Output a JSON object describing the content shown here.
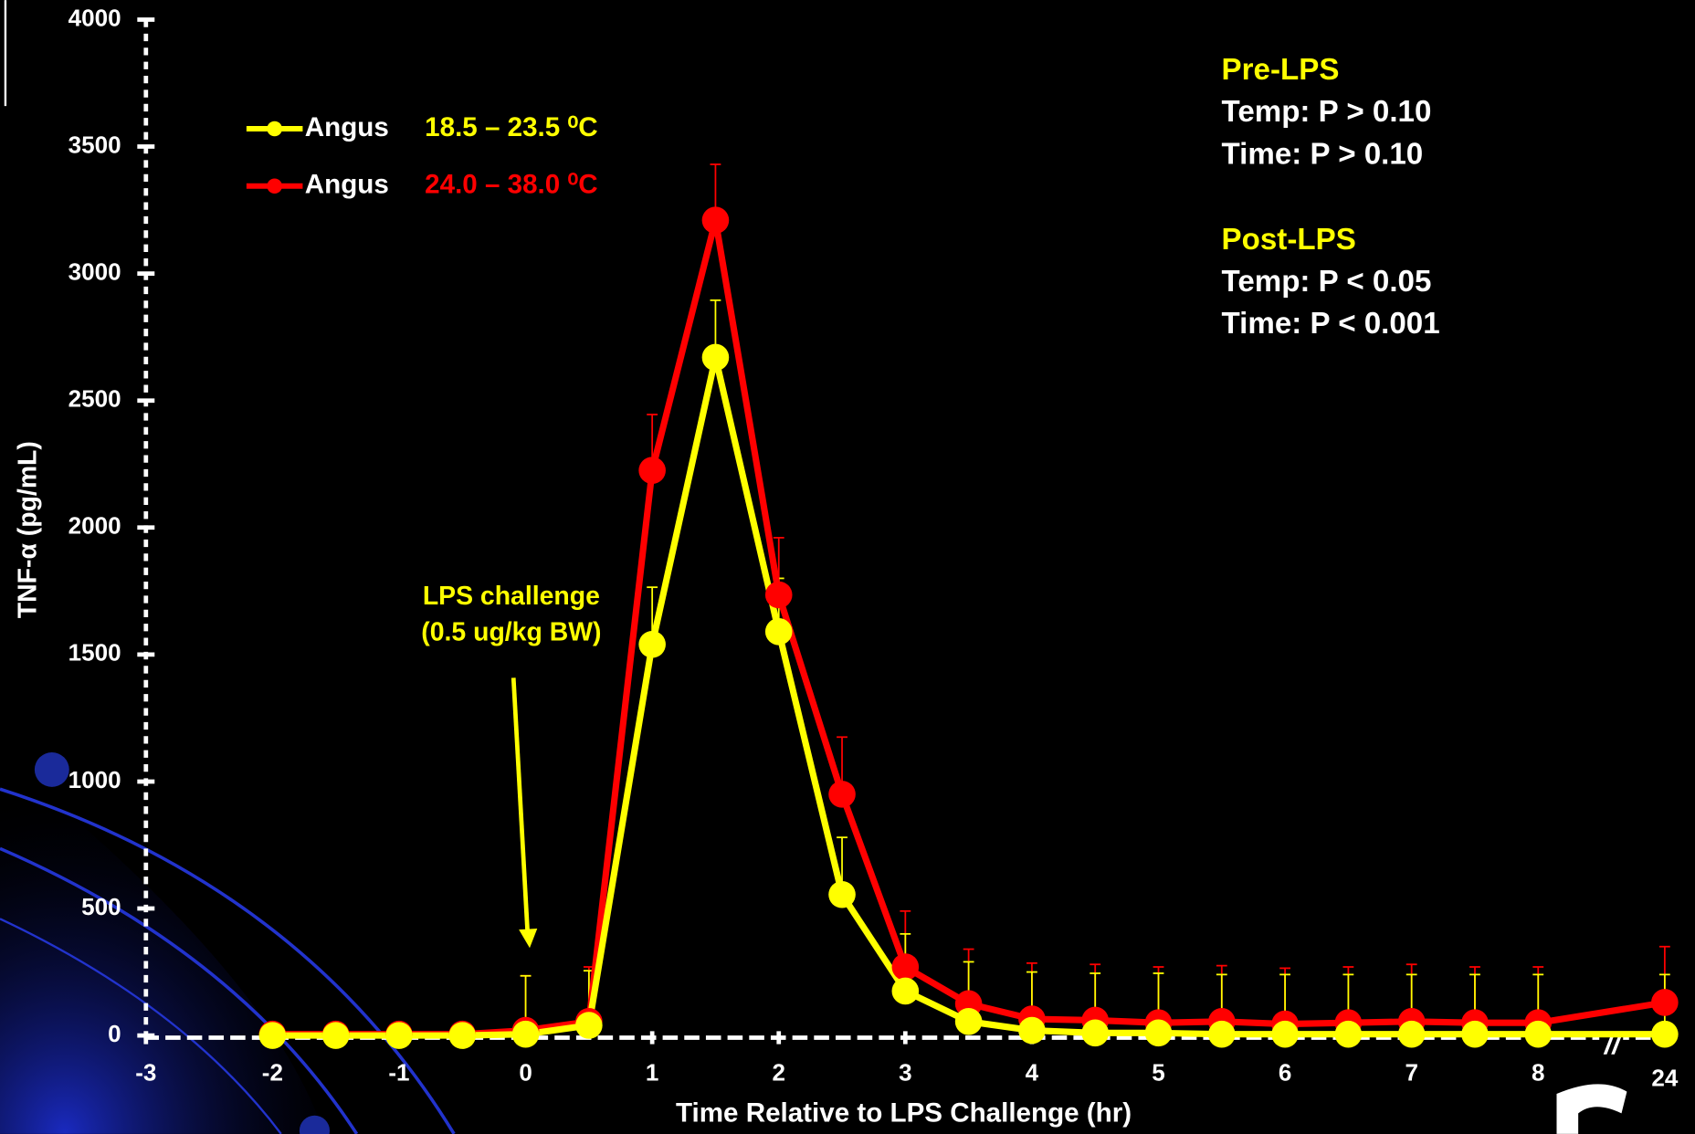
{
  "chart_data": {
    "type": "line",
    "x_label": "Time Relative to LPS Challenge (hr)",
    "y_label": "TNF-α (pg/mL)",
    "x": [
      -2,
      -1.5,
      -1,
      -0.5,
      0,
      0.5,
      1,
      1.5,
      2,
      2.5,
      3,
      3.5,
      4,
      4.5,
      5,
      5.5,
      6,
      6.5,
      7,
      7.5,
      8,
      24
    ],
    "series": [
      {
        "name": "Angus",
        "range": "18.5 – 23.5 ⁰C",
        "color": "#ffff00",
        "values": [
          0,
          0,
          0,
          0,
          5,
          40,
          1540,
          2670,
          1590,
          555,
          175,
          55,
          20,
          10,
          10,
          5,
          5,
          5,
          5,
          5,
          5,
          5
        ],
        "errors": [
          0,
          0,
          0,
          0,
          230,
          215,
          225,
          225,
          210,
          225,
          225,
          235,
          230,
          235,
          235,
          235,
          235,
          235,
          235,
          235,
          235,
          235
        ]
      },
      {
        "name": "Angus",
        "range": "24.0 – 38.0 ⁰C",
        "color": "#ff0000",
        "values": [
          5,
          5,
          5,
          5,
          20,
          55,
          2225,
          3210,
          1735,
          950,
          270,
          125,
          65,
          60,
          50,
          55,
          45,
          50,
          55,
          50,
          50,
          130
        ],
        "errors": [
          0,
          0,
          0,
          0,
          215,
          215,
          220,
          220,
          225,
          225,
          220,
          215,
          220,
          220,
          220,
          220,
          220,
          220,
          225,
          220,
          220,
          220
        ]
      }
    ],
    "xlim": [
      -3,
      24
    ],
    "xticks": [
      -3,
      -2,
      -1,
      0,
      1,
      2,
      3,
      4,
      5,
      6,
      7,
      8,
      24
    ],
    "axis_break": true,
    "ylim": [
      0,
      4000
    ],
    "yticks": [
      0,
      500,
      1000,
      1500,
      2000,
      2500,
      3000,
      3500,
      4000
    ],
    "annotation": [
      "LPS challenge",
      "(0.5 ug/kg BW)"
    ],
    "stats": [
      {
        "heading": "Pre-LPS",
        "lines": [
          "Temp: P > 0.10",
          "Time: P > 0.10"
        ]
      },
      {
        "heading": "Post-LPS",
        "lines": [
          "Temp: P < 0.05",
          "Time: P < 0.001"
        ]
      }
    ]
  }
}
